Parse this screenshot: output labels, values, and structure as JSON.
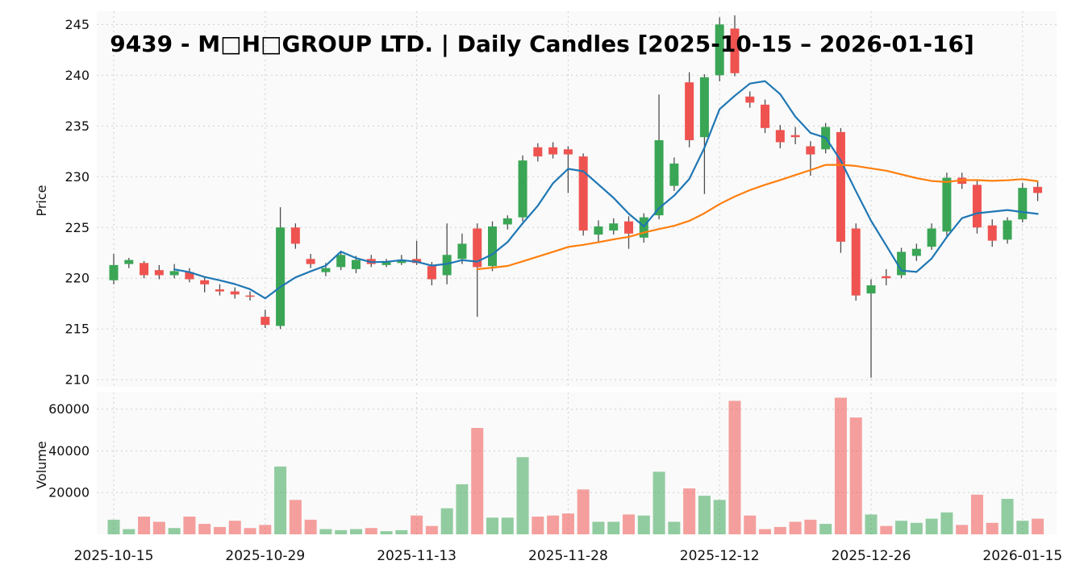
{
  "colors": {
    "up": "#3aa655",
    "down": "#ef5350",
    "wick": "#4d4d4d",
    "grid": "#cfcfcf",
    "panel_bg": "#fafafa",
    "ma_short": "#1f77b4",
    "ma_long": "#ff7f0e",
    "text": "#111111"
  },
  "chart_data": {
    "type": "candlestick",
    "title": "9439 - M□H□GROUP LTD. | Daily Candles [2025-10-15 – 2026-01-16]",
    "legend_position": "none",
    "grid": true,
    "price_axis": {
      "label": "Price",
      "ticks": [
        245,
        240,
        235,
        230,
        225,
        220,
        215,
        210
      ],
      "range": [
        209.3,
        246.3
      ]
    },
    "volume_axis": {
      "label": "Volume",
      "ticks": [
        60000,
        40000,
        20000
      ],
      "range": [
        0,
        68000
      ]
    },
    "x_ticks": [
      {
        "index": 0,
        "label": "2025-10-15"
      },
      {
        "index": 10,
        "label": "2025-10-29"
      },
      {
        "index": 20,
        "label": "2025-11-13"
      },
      {
        "index": 30,
        "label": "2025-11-28"
      },
      {
        "index": 40,
        "label": "2025-12-12"
      },
      {
        "index": 50,
        "label": "2025-12-26"
      },
      {
        "index": 60,
        "label": "2026-01-15"
      }
    ],
    "dates": [
      "2025-10-15",
      "2025-10-16",
      "2025-10-17",
      "2025-10-20",
      "2025-10-21",
      "2025-10-22",
      "2025-10-23",
      "2025-10-24",
      "2025-10-27",
      "2025-10-28",
      "2025-10-29",
      "2025-10-30",
      "2025-10-31",
      "2025-11-04",
      "2025-11-05",
      "2025-11-06",
      "2025-11-07",
      "2025-11-10",
      "2025-11-11",
      "2025-11-12",
      "2025-11-13",
      "2025-11-14",
      "2025-11-17",
      "2025-11-18",
      "2025-11-19",
      "2025-11-20",
      "2025-11-21",
      "2025-11-25",
      "2025-11-26",
      "2025-11-27",
      "2025-11-28",
      "2025-12-01",
      "2025-12-02",
      "2025-12-03",
      "2025-12-04",
      "2025-12-05",
      "2025-12-08",
      "2025-12-09",
      "2025-12-10",
      "2025-12-11",
      "2025-12-12",
      "2025-12-15",
      "2025-12-16",
      "2025-12-17",
      "2025-12-18",
      "2025-12-19",
      "2025-12-22",
      "2025-12-23",
      "2025-12-24",
      "2025-12-25",
      "2025-12-26",
      "2025-12-29",
      "2025-12-30",
      "2026-01-05",
      "2026-01-06",
      "2026-01-07",
      "2026-01-08",
      "2026-01-09",
      "2026-01-13",
      "2026-01-14",
      "2026-01-15",
      "2026-01-16"
    ],
    "open": [
      219.8,
      221.4,
      221.5,
      220.8,
      220.3,
      220.6,
      219.8,
      218.9,
      218.7,
      218.3,
      216.2,
      215.3,
      225.0,
      221.9,
      220.6,
      221.1,
      220.9,
      221.9,
      221.3,
      221.5,
      221.9,
      221.2,
      220.3,
      221.9,
      224.9,
      221.2,
      225.3,
      226.0,
      232.9,
      232.9,
      232.7,
      232.0,
      224.3,
      224.7,
      225.6,
      224.0,
      226.2,
      229.1,
      239.3,
      233.9,
      240.0,
      244.6,
      237.9,
      237.1,
      234.6,
      234.1,
      233.0,
      232.7,
      234.4,
      224.9,
      218.5,
      220.2,
      220.3,
      222.2,
      223.1,
      224.6,
      229.9,
      229.2,
      225.2,
      223.8,
      225.8,
      229.0
    ],
    "high": [
      222.4,
      222.0,
      221.7,
      221.3,
      221.4,
      221.0,
      220.2,
      219.4,
      219.1,
      218.7,
      216.9,
      227.0,
      225.4,
      222.4,
      221.5,
      222.7,
      222.2,
      222.3,
      221.9,
      222.3,
      223.7,
      221.6,
      225.4,
      224.4,
      225.4,
      225.6,
      226.2,
      232.1,
      233.3,
      233.4,
      233.0,
      232.3,
      225.7,
      225.9,
      226.1,
      226.4,
      238.1,
      231.9,
      240.3,
      240.1,
      245.7,
      245.9,
      238.4,
      237.6,
      235.1,
      234.9,
      233.5,
      235.3,
      234.8,
      225.4,
      219.9,
      220.9,
      223.0,
      223.4,
      225.4,
      230.4,
      230.4,
      229.7,
      225.8,
      226.0,
      229.4,
      229.6
    ],
    "low": [
      219.4,
      221.0,
      220.0,
      219.9,
      220.0,
      219.6,
      218.6,
      218.3,
      218.0,
      217.8,
      215.1,
      215.0,
      222.9,
      221.0,
      220.2,
      220.8,
      220.5,
      221.1,
      221.1,
      221.3,
      221.3,
      219.3,
      219.4,
      221.4,
      216.2,
      220.7,
      224.8,
      225.6,
      231.5,
      231.8,
      228.4,
      224.2,
      223.6,
      224.3,
      222.9,
      223.5,
      225.8,
      228.6,
      232.9,
      228.3,
      239.4,
      239.9,
      236.8,
      234.3,
      232.8,
      233.2,
      230.1,
      232.3,
      222.5,
      217.8,
      210.2,
      219.3,
      220.0,
      221.7,
      222.8,
      224.2,
      228.8,
      224.4,
      223.1,
      223.4,
      225.5,
      227.6
    ],
    "close": [
      221.3,
      221.8,
      220.3,
      220.3,
      220.7,
      219.9,
      219.4,
      218.7,
      218.4,
      218.2,
      215.4,
      225.0,
      223.4,
      221.4,
      221.0,
      222.3,
      221.8,
      221.4,
      221.6,
      221.8,
      221.5,
      219.9,
      222.3,
      223.4,
      221.1,
      225.1,
      225.9,
      231.6,
      232.0,
      232.2,
      232.2,
      224.7,
      225.1,
      225.4,
      224.4,
      226.0,
      233.6,
      231.3,
      233.6,
      239.8,
      245.0,
      240.2,
      237.3,
      234.8,
      233.4,
      233.9,
      232.2,
      234.9,
      223.6,
      218.3,
      219.3,
      220.0,
      222.6,
      222.9,
      224.9,
      229.9,
      229.3,
      225.0,
      223.7,
      225.7,
      228.9,
      228.4
    ],
    "volume": [
      7000,
      2500,
      8500,
      6000,
      3000,
      8500,
      5000,
      3500,
      6500,
      3000,
      4500,
      32500,
      16500,
      7000,
      2500,
      2000,
      2500,
      3000,
      1500,
      2000,
      9000,
      4000,
      12500,
      24000,
      51000,
      8000,
      8000,
      37000,
      8500,
      9000,
      10000,
      21500,
      6000,
      6000,
      9500,
      9000,
      30000,
      6000,
      22000,
      18500,
      16500,
      64000,
      9000,
      2500,
      3500,
      6000,
      7000,
      5000,
      65500,
      56000,
      9500,
      4000,
      6500,
      5500,
      7500,
      10500,
      4500,
      19000,
      5500,
      17000,
      6500,
      7500
    ],
    "overlays": [
      {
        "name": "ma-short-line",
        "window": 5,
        "color": "#1f77b4"
      },
      {
        "name": "ma-long-line",
        "window": 25,
        "color": "#ff7f0e"
      }
    ]
  }
}
